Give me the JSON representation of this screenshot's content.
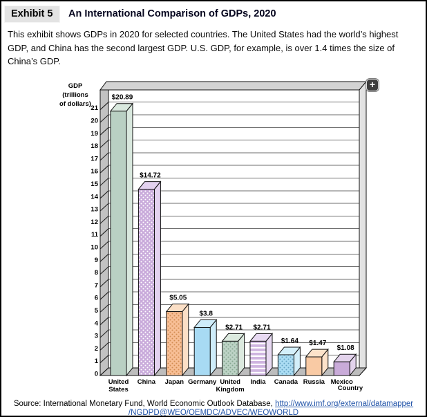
{
  "header": {
    "exhibit_label": "Exhibit 5",
    "title": "An International Comparison of GDPs, 2020"
  },
  "description": "This exhibit shows GDPs in 2020 for selected countries. The United States had the world’s highest GDP, and China has the second largest GDP. U.S. GDP, for example, is over 1.4 times the size of China’s GDP.",
  "chart": {
    "zoom_button_label": "+"
  },
  "chart_data": {
    "type": "bar",
    "style": "3d-column",
    "categories": [
      "United States",
      "China",
      "Japan",
      "Germany",
      "United Kingdom",
      "India",
      "Canada",
      "Russia",
      "Mexico"
    ],
    "values": [
      20.89,
      14.72,
      5.05,
      3.8,
      2.71,
      2.71,
      1.64,
      1.47,
      1.08
    ],
    "value_labels": [
      "$20.89",
      "$14.72",
      "$5.05",
      "$3.8",
      "$2.71",
      "$2.71",
      "$1.64",
      "$1.47",
      "$1.08"
    ],
    "ylabel_lines": [
      "GDP",
      "(trillions",
      "of dollars)"
    ],
    "xlabel": "Country",
    "ylim": [
      0,
      22
    ],
    "yticks": [
      0,
      1,
      2,
      3,
      4,
      5,
      6,
      7,
      8,
      9,
      10,
      11,
      12,
      13,
      14,
      15,
      16,
      17,
      18,
      19,
      20,
      21
    ],
    "grid": true,
    "legend": false,
    "bar_styles": [
      {
        "front": "#b9d0c3",
        "light": "#d9e8de",
        "pattern": "none",
        "pattern_color": ""
      },
      {
        "front": "#c9abdb",
        "light": "#e3d2ef",
        "pattern": "dots",
        "pattern_color": "#ffffff"
      },
      {
        "front": "#f8bf96",
        "light": "#fbdfc6",
        "pattern": "dots",
        "pattern_color": "#d28c52"
      },
      {
        "front": "#a8daf3",
        "light": "#ceecfa",
        "pattern": "none",
        "pattern_color": ""
      },
      {
        "front": "#bdd3c6",
        "light": "#dceadf",
        "pattern": "dots",
        "pattern_color": "#86a891"
      },
      {
        "front": "#cfb5e0",
        "light": "#e8daf2",
        "pattern": "stripes",
        "pattern_color": "#ffffff"
      },
      {
        "front": "#addef4",
        "light": "#d3effa",
        "pattern": "dots",
        "pattern_color": "#68a6c6"
      },
      {
        "front": "#f9caa4",
        "light": "#fce2ca",
        "pattern": "none",
        "pattern_color": ""
      },
      {
        "front": "#c9abd9",
        "light": "#e3d3ec",
        "pattern": "none",
        "pattern_color": ""
      }
    ],
    "wall_colors": {
      "top_band": "#d3d3d3",
      "left_wall": "#c2c2c2",
      "right_wall": "#e2e2e2",
      "floor": "#bdbdbd",
      "gridline": "#6e6e6e"
    }
  },
  "source": {
    "prefix": "Source: International Monetary Fund, World Economic Outlook Database, ",
    "link_line1": "http://www.imf.org/external/datamapper",
    "link_line2": "/NGDPD@WEO/OEMDC/ADVEC/WEOWORLD"
  }
}
